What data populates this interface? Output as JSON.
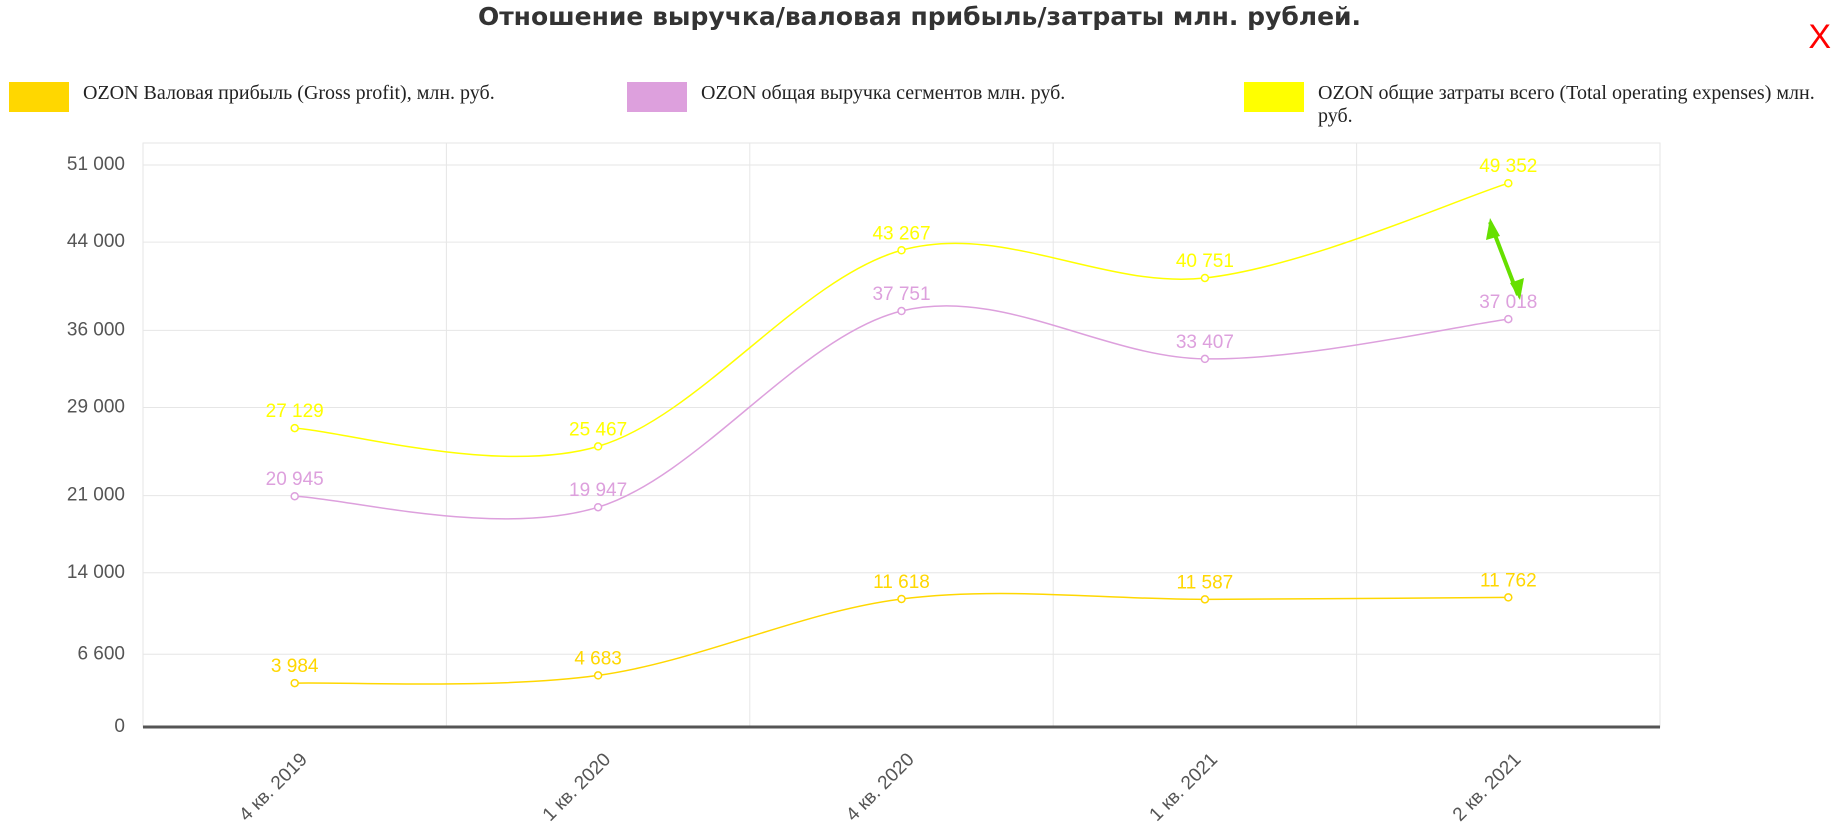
{
  "chart_data": {
    "type": "line",
    "title": "Отношение выручка/валовая прибыль/затраты млн. рублей.",
    "categories": [
      "4 кв. 2019",
      "1 кв. 2020",
      "4 кв. 2020",
      "1 кв. 2021",
      "2 кв. 2021"
    ],
    "series": [
      {
        "name": "OZON Валовая прибыль (Gross profit), млн. руб.",
        "color": "#ffd700",
        "values": [
          3984,
          4683,
          11618,
          11587,
          11762
        ],
        "value_labels": [
          "3 984",
          "4 683",
          "11 618",
          "11 587",
          "11 762"
        ]
      },
      {
        "name": "OZON общая выручка сегментов млн. руб.",
        "color": "#dda0dd",
        "values": [
          20945,
          19947,
          37751,
          33407,
          37018
        ],
        "value_labels": [
          "20 945",
          "19 947",
          "37 751",
          "33 407",
          "37 018"
        ]
      },
      {
        "name": "OZON общие затраты всего (Total operating expenses) млн. руб.",
        "color": "#ffff00",
        "values": [
          27129,
          25467,
          43267,
          40751,
          49352
        ],
        "value_labels": [
          "27 129",
          "25 467",
          "43 267",
          "40 751",
          "49 352"
        ]
      }
    ],
    "ylim": [
      0,
      53000
    ],
    "yticks": [
      0,
      {
        "value": 6600,
        "label": "6 600"
      },
      {
        "value": 14000,
        "label": "14 000"
      },
      {
        "value": 21000,
        "label": "21 000"
      },
      {
        "value": 29000,
        "label": "29 000"
      },
      {
        "value": 36000,
        "label": "36 000"
      },
      {
        "value": 44000,
        "label": "44 000"
      },
      {
        "value": 51000,
        "label": "51 000"
      }
    ],
    "grid": true
  },
  "close_button": "X"
}
